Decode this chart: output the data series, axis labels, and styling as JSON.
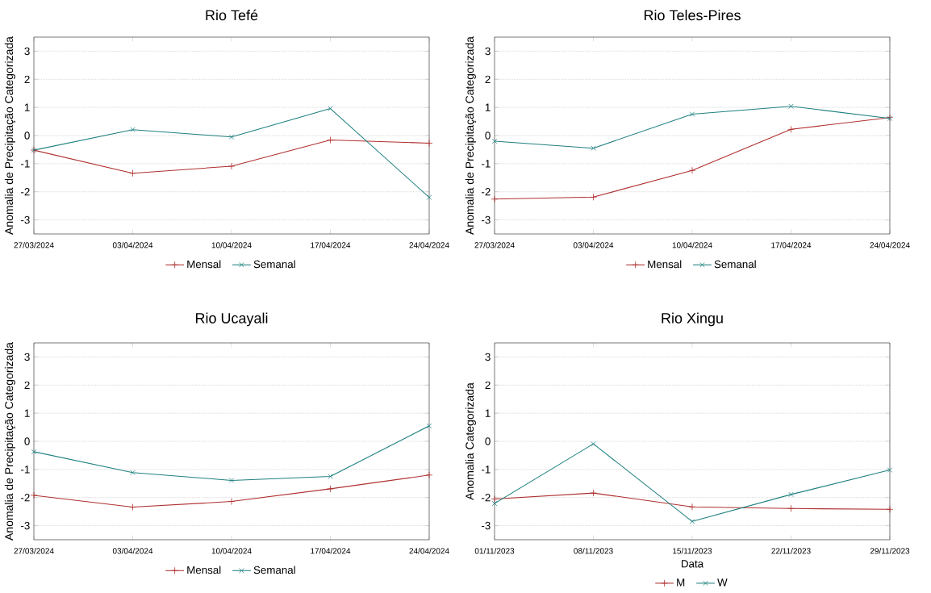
{
  "chart_data": [
    {
      "type": "line",
      "title": "Rio Tefé",
      "ylabel": "Anomalia de Precipitação Categorizada",
      "categories": [
        "27/03/2024",
        "03/04/2024",
        "10/04/2024",
        "17/04/2024",
        "24/04/2024"
      ],
      "ylim": [
        -3.5,
        3.5
      ],
      "yticks": [
        -3,
        -2,
        -1,
        0,
        1,
        2,
        3
      ],
      "grid": "y",
      "legend": "bottom",
      "marker": "cross",
      "line_style": "solid",
      "series": [
        {
          "name": "Mensal",
          "color": "#b03030",
          "values": [
            -0.52,
            -1.34,
            -1.09,
            -0.16,
            -0.27
          ]
        },
        {
          "name": "Semanal",
          "color": "#208080",
          "values": [
            -0.52,
            0.21,
            -0.05,
            0.96,
            -2.2
          ]
        }
      ]
    },
    {
      "type": "line",
      "title": "Rio Teles-Pires",
      "ylabel": "Anomalia de Precipitação Categorizada",
      "categories": [
        "27/03/2024",
        "03/04/2024",
        "10/04/2024",
        "17/04/2024",
        "24/04/2024"
      ],
      "ylim": [
        -3.5,
        3.5
      ],
      "yticks": [
        -3,
        -2,
        -1,
        0,
        1,
        2,
        3
      ],
      "grid": "y",
      "legend": "bottom",
      "marker": "cross",
      "line_style": "solid",
      "series": [
        {
          "name": "Mensal",
          "color": "#b03030",
          "values": [
            -2.26,
            -2.19,
            -1.24,
            0.22,
            0.64
          ]
        },
        {
          "name": "Semanal",
          "color": "#208080",
          "values": [
            -0.2,
            -0.45,
            0.76,
            1.04,
            0.61
          ]
        }
      ]
    },
    {
      "type": "line",
      "title": "Rio Ucayali",
      "ylabel": "Anomalia de Precipitação Categorizada",
      "categories": [
        "27/03/2024",
        "03/04/2024",
        "10/04/2024",
        "17/04/2024",
        "24/04/2024"
      ],
      "ylim": [
        -3.5,
        3.5
      ],
      "yticks": [
        -3,
        -2,
        -1,
        0,
        1,
        2,
        3
      ],
      "grid": "y",
      "legend": "bottom",
      "marker": "cross",
      "line_style": "solid",
      "series": [
        {
          "name": "Mensal",
          "color": "#b03030",
          "values": [
            -1.92,
            -2.34,
            -2.14,
            -1.69,
            -1.2
          ]
        },
        {
          "name": "Semanal",
          "color": "#208080",
          "values": [
            -0.37,
            -1.11,
            -1.39,
            -1.25,
            0.55
          ]
        }
      ]
    },
    {
      "type": "line",
      "title": "Rio Xingu",
      "xlabel": "Data",
      "ylabel": "Anomalia Categorizada",
      "categories": [
        "01/11/2023",
        "08/11/2023",
        "15/11/2023",
        "22/11/2023",
        "29/11/2023"
      ],
      "ylim": [
        -3.5,
        3.5
      ],
      "yticks": [
        -3,
        -2,
        -1,
        0,
        1,
        2,
        3
      ],
      "grid": "y",
      "legend": "bottom",
      "marker": "cross",
      "line_style": "solid",
      "series": [
        {
          "name": "M",
          "color": "#b03030",
          "values": [
            -2.05,
            -1.84,
            -2.33,
            -2.39,
            -2.42
          ]
        },
        {
          "name": "W",
          "color": "#208080",
          "values": [
            -2.21,
            -0.09,
            -2.85,
            -1.89,
            -1.02
          ]
        }
      ]
    }
  ]
}
